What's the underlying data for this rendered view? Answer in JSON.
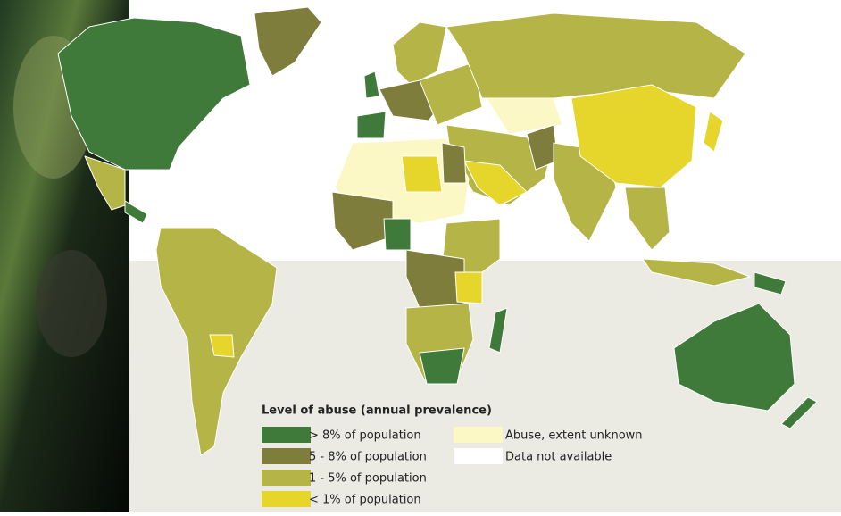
{
  "legend": {
    "title": "Level of abuse (annual prevalence)",
    "items": [
      {
        "label": "> 8% of population",
        "color": "#3f7a3a"
      },
      {
        "label": "5 - 8% of population",
        "color": "#7e7d3b"
      },
      {
        "label": "1 - 5% of population",
        "color": "#b4b447"
      },
      {
        "label": "< 1% of population",
        "color": "#e6d62c"
      },
      {
        "label": "Abuse, extent unknown",
        "color": "#fcf8c6"
      },
      {
        "label": "Data not available",
        "color": "#ffffff"
      }
    ]
  }
}
